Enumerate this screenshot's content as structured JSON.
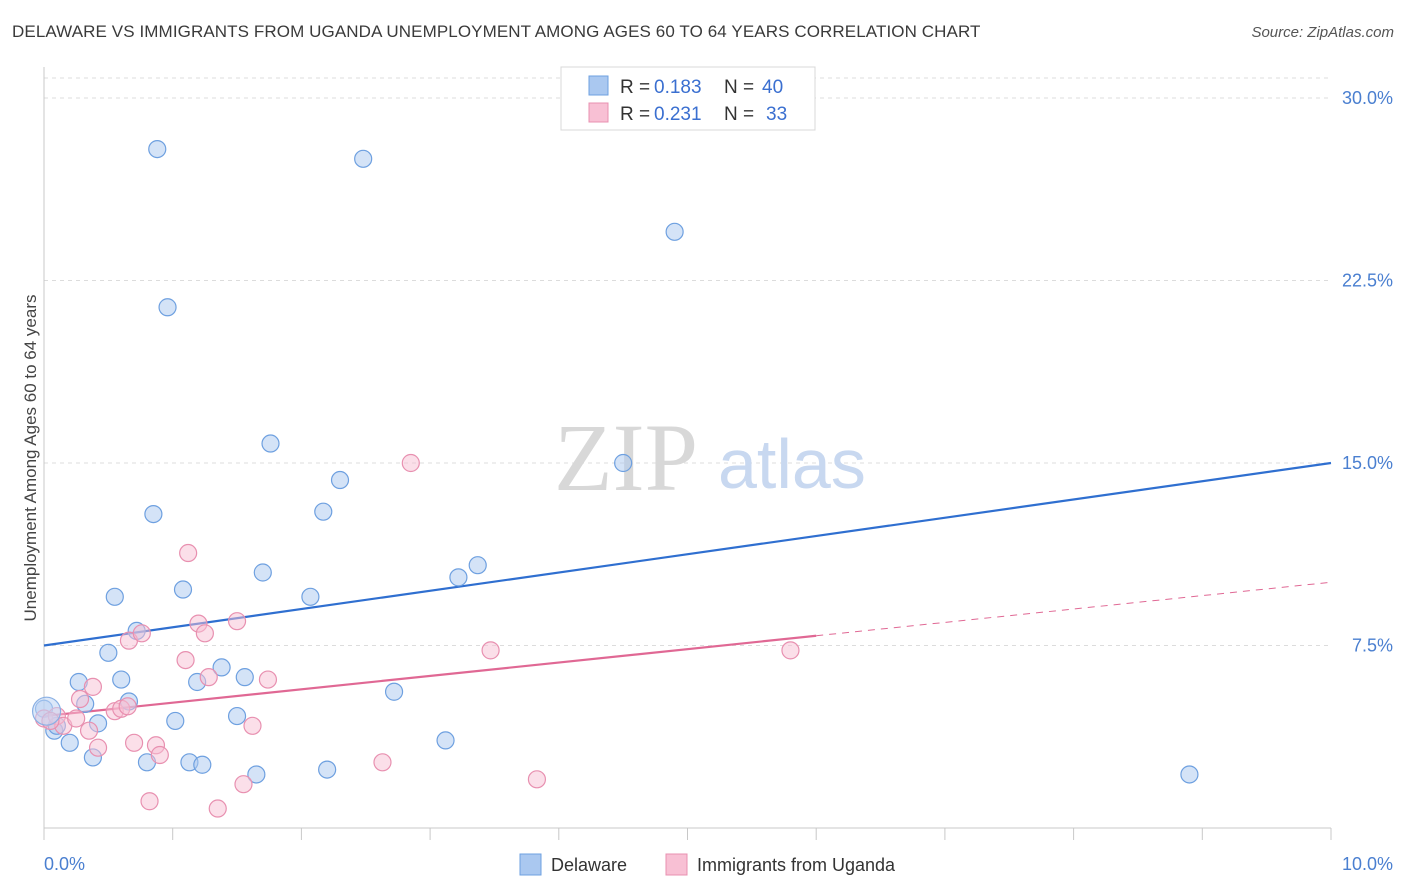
{
  "chart_data": {
    "type": "scatter",
    "title": "DELAWARE VS IMMIGRANTS FROM UGANDA UNEMPLOYMENT AMONG AGES 60 TO 64 YEARS CORRELATION CHART",
    "source": "Source: ZipAtlas.com",
    "xlabel": "",
    "ylabel": "Unemployment Among Ages 60 to 64 years",
    "xlim": [
      0,
      10
    ],
    "ylim": [
      0,
      31
    ],
    "x_tick_labels": [
      "0.0%",
      "10.0%"
    ],
    "y_ticks": [
      {
        "value": 7.5,
        "label": "7.5%"
      },
      {
        "value": 15,
        "label": "15.0%"
      },
      {
        "value": 22.5,
        "label": "22.5%"
      },
      {
        "value": 30,
        "label": "30.0%"
      }
    ],
    "watermark": {
      "zip": "ZIP",
      "atlas": "atlas"
    },
    "legend": [
      {
        "r_label": "R =",
        "r_value": "0.183",
        "n_label": "N =",
        "n_value": "40"
      },
      {
        "r_label": "R =",
        "r_value": "0.231",
        "n_label": "N =",
        "n_value": "33"
      }
    ],
    "series": [
      {
        "name": "Delaware",
        "color": "#6ea0e0",
        "fill": "#aac8f0",
        "trend_color": "#2f6fd0",
        "trend": {
          "x0": 0,
          "y0": 7.5,
          "x1": 10,
          "y1": 15.0
        },
        "points": [
          {
            "x": 0.0,
            "y": 4.9
          },
          {
            "x": 0.08,
            "y": 4.0
          },
          {
            "x": 0.1,
            "y": 4.2
          },
          {
            "x": 0.2,
            "y": 3.5
          },
          {
            "x": 0.27,
            "y": 6.0
          },
          {
            "x": 0.32,
            "y": 5.1
          },
          {
            "x": 0.38,
            "y": 2.9
          },
          {
            "x": 0.42,
            "y": 4.3
          },
          {
            "x": 0.5,
            "y": 7.2
          },
          {
            "x": 0.55,
            "y": 9.5
          },
          {
            "x": 0.6,
            "y": 6.1
          },
          {
            "x": 0.66,
            "y": 5.2
          },
          {
            "x": 0.72,
            "y": 8.1
          },
          {
            "x": 0.8,
            "y": 2.7
          },
          {
            "x": 0.85,
            "y": 12.9
          },
          {
            "x": 0.88,
            "y": 27.9
          },
          {
            "x": 0.96,
            "y": 21.4
          },
          {
            "x": 1.02,
            "y": 4.4
          },
          {
            "x": 1.08,
            "y": 9.8
          },
          {
            "x": 1.13,
            "y": 2.7
          },
          {
            "x": 1.19,
            "y": 6.0
          },
          {
            "x": 1.23,
            "y": 2.6
          },
          {
            "x": 1.38,
            "y": 6.6
          },
          {
            "x": 1.5,
            "y": 4.6
          },
          {
            "x": 1.56,
            "y": 6.2
          },
          {
            "x": 1.65,
            "y": 2.2
          },
          {
            "x": 1.7,
            "y": 10.5
          },
          {
            "x": 1.76,
            "y": 15.8
          },
          {
            "x": 2.07,
            "y": 9.5
          },
          {
            "x": 2.17,
            "y": 13.0
          },
          {
            "x": 2.2,
            "y": 2.4
          },
          {
            "x": 2.3,
            "y": 14.3
          },
          {
            "x": 2.48,
            "y": 27.5
          },
          {
            "x": 2.72,
            "y": 5.6
          },
          {
            "x": 3.12,
            "y": 3.6
          },
          {
            "x": 3.22,
            "y": 10.3
          },
          {
            "x": 3.37,
            "y": 10.8
          },
          {
            "x": 4.5,
            "y": 15.0
          },
          {
            "x": 4.9,
            "y": 24.5
          },
          {
            "x": 8.9,
            "y": 2.2
          }
        ]
      },
      {
        "name": "Immigrants from Uganda",
        "color": "#e890b0",
        "fill": "#f8c0d4",
        "trend_color": "#e06894",
        "trend": {
          "x0": 0,
          "y0": 4.6,
          "x1": 6.0,
          "y1": 7.9
        },
        "trend_dashed": {
          "x0": 6.0,
          "y0": 7.9,
          "x1": 10.0,
          "y1": 10.1
        },
        "points": [
          {
            "x": 0.0,
            "y": 4.5
          },
          {
            "x": 0.1,
            "y": 4.6
          },
          {
            "x": 0.15,
            "y": 4.2
          },
          {
            "x": 0.25,
            "y": 4.5
          },
          {
            "x": 0.28,
            "y": 5.3
          },
          {
            "x": 0.35,
            "y": 4.0
          },
          {
            "x": 0.38,
            "y": 5.8
          },
          {
            "x": 0.42,
            "y": 3.3
          },
          {
            "x": 0.55,
            "y": 4.8
          },
          {
            "x": 0.6,
            "y": 4.9
          },
          {
            "x": 0.65,
            "y": 5.0
          },
          {
            "x": 0.66,
            "y": 7.7
          },
          {
            "x": 0.7,
            "y": 3.5
          },
          {
            "x": 0.76,
            "y": 8.0
          },
          {
            "x": 0.82,
            "y": 1.1
          },
          {
            "x": 0.87,
            "y": 3.4
          },
          {
            "x": 0.9,
            "y": 3.0
          },
          {
            "x": 1.1,
            "y": 6.9
          },
          {
            "x": 1.12,
            "y": 11.3
          },
          {
            "x": 1.2,
            "y": 8.4
          },
          {
            "x": 1.25,
            "y": 8.0
          },
          {
            "x": 1.28,
            "y": 6.2
          },
          {
            "x": 1.35,
            "y": 0.8
          },
          {
            "x": 1.5,
            "y": 8.5
          },
          {
            "x": 1.55,
            "y": 1.8
          },
          {
            "x": 1.62,
            "y": 4.2
          },
          {
            "x": 1.74,
            "y": 6.1
          },
          {
            "x": 2.63,
            "y": 2.7
          },
          {
            "x": 2.85,
            "y": 15.0
          },
          {
            "x": 3.47,
            "y": 7.3
          },
          {
            "x": 3.83,
            "y": 2.0
          },
          {
            "x": 5.8,
            "y": 7.3
          },
          {
            "x": 0.05,
            "y": 4.4
          }
        ]
      }
    ]
  }
}
